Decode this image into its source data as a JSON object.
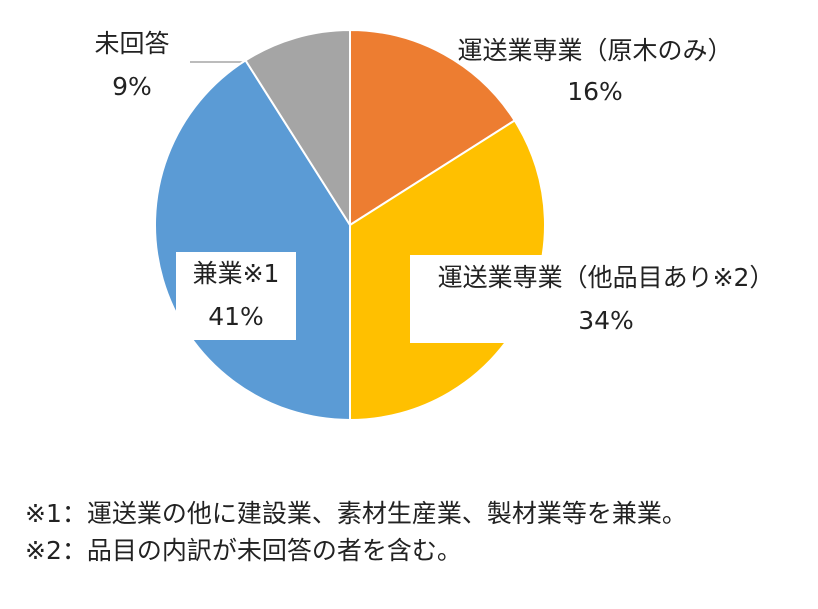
{
  "chart_data": {
    "type": "pie",
    "categories": [
      "運送業専業（原木のみ）",
      "運送業専業（他品目あり※2）",
      "兼業※1",
      "未回答"
    ],
    "values": [
      16,
      34,
      41,
      9
    ],
    "value_labels": [
      "16%",
      "34%",
      "41%",
      "9%"
    ],
    "colors": [
      "#ED7D31",
      "#FFC000",
      "#5B9BD5",
      "#A5A5A5"
    ],
    "notes": [
      "※1：運送業の他に建設業、素材生産業、製材業等を兼業。",
      "※2：品目の内訳が未回答の者を含む。"
    ]
  }
}
